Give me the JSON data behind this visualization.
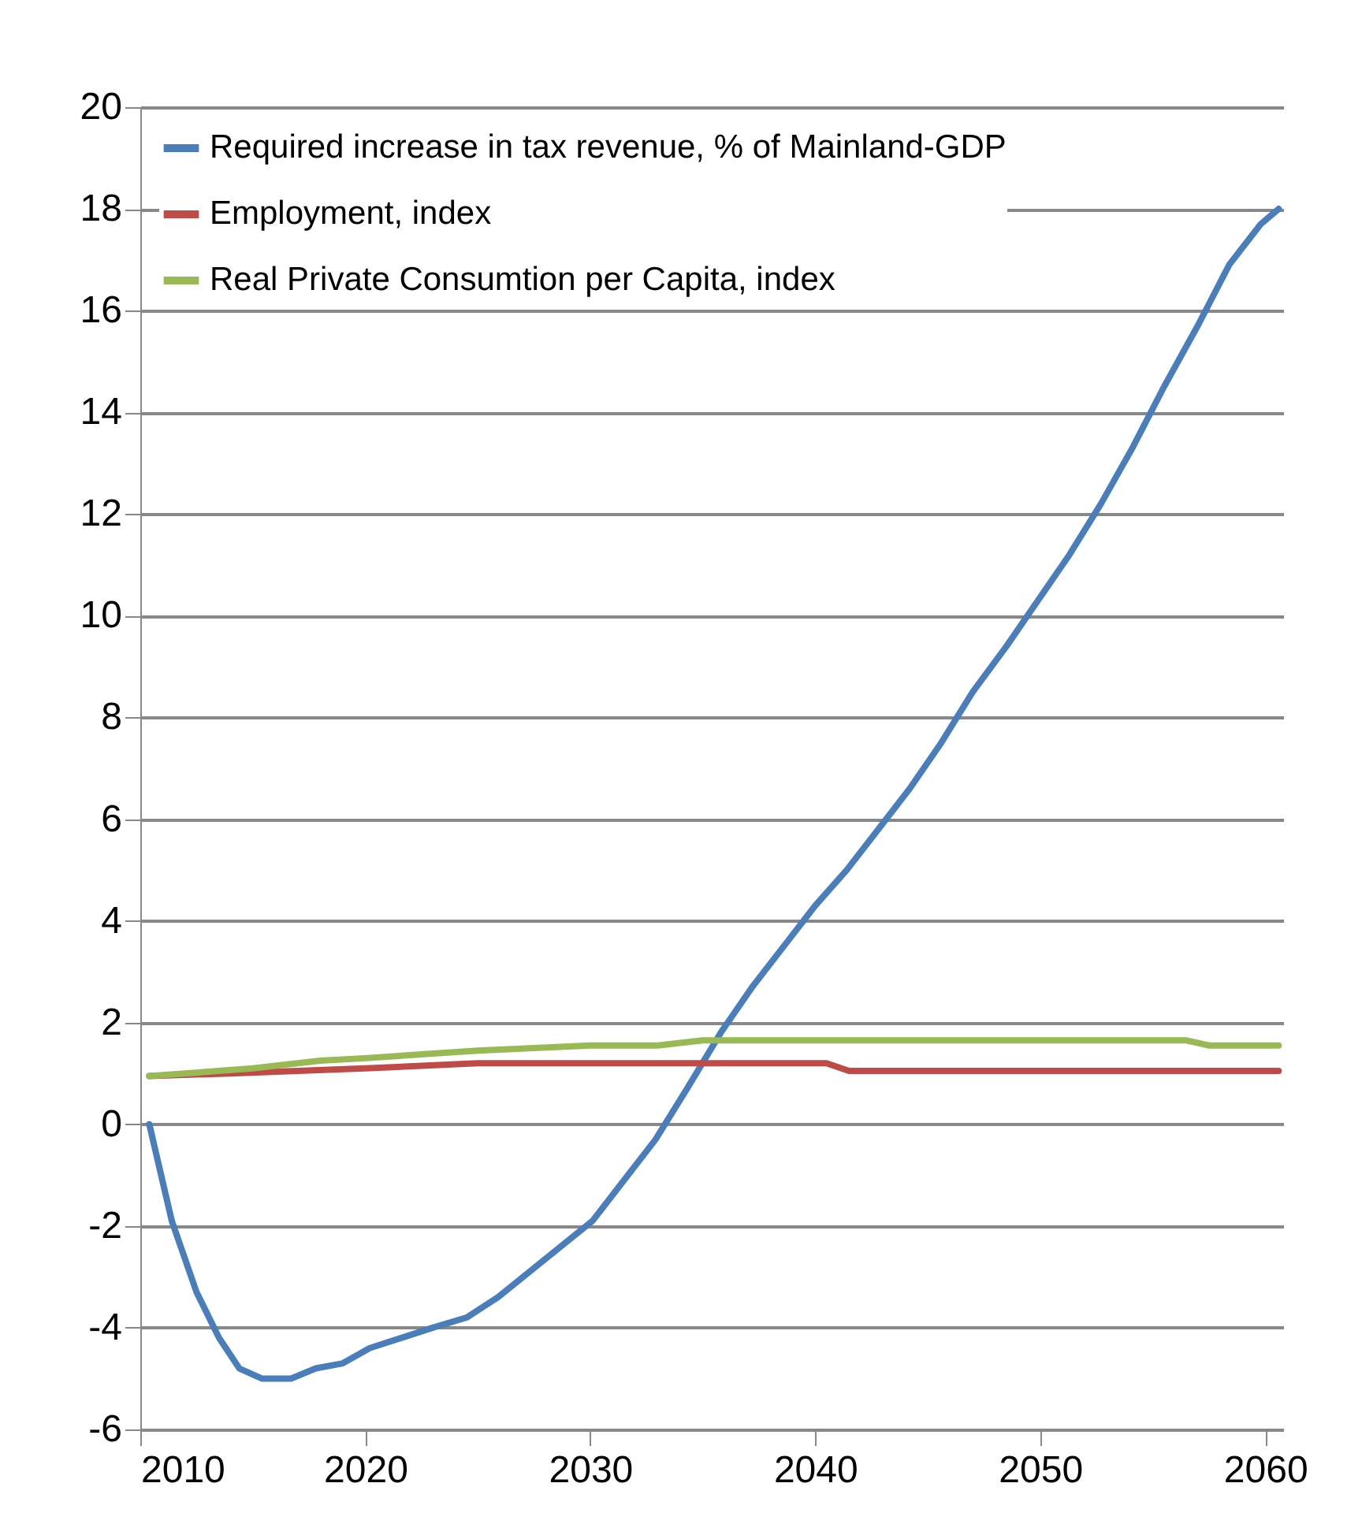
{
  "chart_data": {
    "type": "line",
    "legend": "top left",
    "grid": "y",
    "line_style": "solid",
    "marker": "none",
    "xlim": [
      2010,
      2060.8
    ],
    "xticks": [
      2010,
      2020,
      2030,
      2040,
      2050,
      2060
    ],
    "ylim": [
      -6,
      20
    ],
    "yticks": [
      -6,
      -4,
      -2,
      0,
      2,
      4,
      6,
      8,
      10,
      12,
      14,
      16,
      18,
      20
    ],
    "series": [
      {
        "name": "Required increase in tax revenue, % of Mainland-GDP",
        "color": "#4a7ebb",
        "x": [
          2010.4,
          2011.4,
          2012.5,
          2013.5,
          2014.4,
          2015.4,
          2016.7,
          2017.8,
          2019,
          2020.2,
          2021.6,
          2023,
          2024.5,
          2025.9,
          2027.3,
          2028.7,
          2030.1,
          2031.5,
          2032.9,
          2034.3,
          2035.8,
          2037.2,
          2038.6,
          2040,
          2041.4,
          2042.8,
          2044.2,
          2045.6,
          2047,
          2048.5,
          2049.9,
          2051.3,
          2052.7,
          2054.1,
          2055.5,
          2057,
          2058.4,
          2059.8,
          2060.6
        ],
        "values": [
          0,
          -1.9,
          -3.3,
          -4.2,
          -4.8,
          -5.0,
          -5.0,
          -4.8,
          -4.7,
          -4.4,
          -4.2,
          -4.0,
          -3.8,
          -3.4,
          -2.9,
          -2.4,
          -1.9,
          -1.1,
          -0.3,
          0.7,
          1.8,
          2.7,
          3.5,
          4.3,
          5.0,
          5.8,
          6.6,
          7.5,
          8.5,
          9.4,
          10.3,
          11.2,
          12.2,
          13.3,
          14.5,
          15.7,
          16.9,
          17.7,
          18.0
        ]
      },
      {
        "name": "Employment, index",
        "color": "#be4b48",
        "x": [
          2010.4,
          2014,
          2017,
          2020,
          2025,
          2030,
          2035,
          2040.5,
          2041.5,
          2045,
          2050,
          2055,
          2060.6
        ],
        "values": [
          0.95,
          1.0,
          1.05,
          1.1,
          1.2,
          1.2,
          1.2,
          1.2,
          1.05,
          1.05,
          1.05,
          1.05,
          1.05
        ]
      },
      {
        "name": "Real Private Consumtion per Capita, index",
        "color": "#98b954",
        "x": [
          2010.4,
          2012,
          2015,
          2018,
          2020,
          2025,
          2030,
          2033,
          2035,
          2040,
          2045,
          2050,
          2055,
          2056.5,
          2057.5,
          2060.6
        ],
        "values": [
          0.95,
          1.0,
          1.1,
          1.25,
          1.3,
          1.45,
          1.55,
          1.55,
          1.65,
          1.65,
          1.65,
          1.65,
          1.65,
          1.65,
          1.55,
          1.55
        ]
      }
    ]
  }
}
